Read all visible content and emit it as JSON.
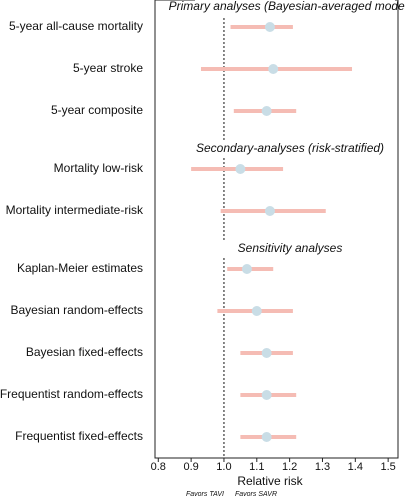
{
  "chart_data": {
    "type": "forest",
    "xlabel": "Relative risk",
    "favors_left": "Favors TAVI",
    "favors_right": "Favors SAVR",
    "xlim": [
      0.79,
      1.53
    ],
    "xticks": [
      0.8,
      0.9,
      {
        "value": 1,
        "label": "1.0"
      },
      1.1,
      1.2,
      1.3,
      1.4,
      1.5
    ],
    "reference_line": 1,
    "ci_color": "#f5bcb4",
    "point_color": "#c9dde6",
    "sections": [
      {
        "title": "Primary analyses (Bayesian-averaged model)",
        "categories": [
          "5-year all-cause mortality",
          "5-year stroke",
          "5-year composite"
        ],
        "values": [
          1.14,
          1.15,
          1.13
        ],
        "lower": [
          1.02,
          0.93,
          1.03
        ],
        "upper": [
          1.21,
          1.39,
          1.22
        ]
      },
      {
        "title": "Secondary-analyses (risk-stratified)",
        "categories": [
          "Mortality low-risk",
          "Mortality intermediate-risk"
        ],
        "values": [
          1.05,
          1.14
        ],
        "lower": [
          0.9,
          0.99
        ],
        "upper": [
          1.18,
          1.31
        ]
      },
      {
        "title": "Sensitivity analyses",
        "categories": [
          "Kaplan-Meier estimates",
          "Bayesian random-effects",
          "Bayesian fixed-effects",
          "Frequentist random-effects",
          "Frequentist fixed-effects"
        ],
        "values": [
          1.07,
          1.1,
          1.13,
          1.13,
          1.13
        ],
        "lower": [
          1.01,
          0.98,
          1.05,
          1.05,
          1.05
        ],
        "upper": [
          1.15,
          1.21,
          1.21,
          1.22,
          1.22
        ]
      }
    ]
  }
}
